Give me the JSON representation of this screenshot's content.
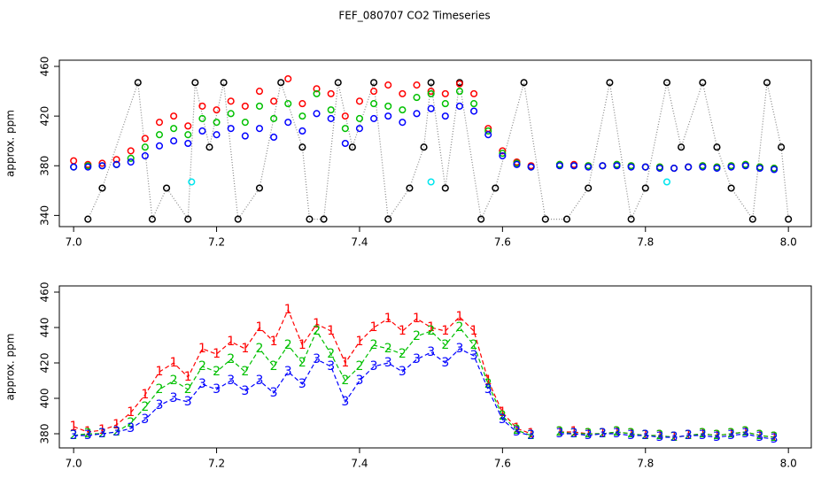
{
  "title": "FEF_080707  CO2 Timeseries",
  "chart_data": [
    {
      "type": "scatter",
      "ylabel": "approx. ppm",
      "xlim": [
        6.98,
        8.032
      ],
      "xticks": [
        {
          "value": 7,
          "label": "7.0"
        },
        7.2,
        7.4,
        7.6,
        7.8,
        {
          "value": 8,
          "label": "8.0"
        }
      ],
      "ylim": [
        331,
        465
      ],
      "yticks": [
        340,
        380,
        420,
        460
      ],
      "x": [
        7.0,
        7.02,
        7.04,
        7.06,
        7.08,
        7.1,
        7.12,
        7.14,
        7.16,
        7.18,
        7.2,
        7.22,
        7.24,
        7.26,
        7.28,
        7.3,
        7.32,
        7.34,
        7.36,
        7.38,
        7.4,
        7.42,
        7.44,
        7.46,
        7.48,
        7.5,
        7.52,
        7.54,
        7.56,
        7.58,
        7.6,
        7.62,
        7.64,
        7.66,
        7.68,
        7.7,
        7.72,
        7.74,
        7.76,
        7.78,
        7.8,
        7.82,
        7.84,
        7.86,
        7.88,
        7.9,
        7.92,
        7.94,
        7.96,
        7.98
      ],
      "series": [
        {
          "color": "#000000",
          "line_color": "#888888",
          "line_style": "dotted",
          "x": [
            7.02,
            7.04,
            7.09,
            7.11,
            7.13,
            7.16,
            7.17,
            7.19,
            7.21,
            7.23,
            7.26,
            7.29,
            7.32,
            7.33,
            7.35,
            7.37,
            7.39,
            7.42,
            7.44,
            7.47,
            7.49,
            7.5,
            7.52,
            7.54,
            7.57,
            7.59,
            7.63,
            7.66,
            7.69,
            7.72,
            7.75,
            7.78,
            7.8,
            7.83,
            7.85,
            7.88,
            7.9,
            7.92,
            7.95,
            7.97,
            7.99,
            8.0
          ],
          "values": [
            337,
            362,
            447,
            337,
            362,
            337,
            447,
            395,
            447,
            337,
            362,
            447,
            395,
            337,
            337,
            447,
            395,
            447,
            337,
            362,
            395,
            447,
            362,
            447,
            337,
            362,
            447,
            337,
            337,
            362,
            447,
            337,
            362,
            447,
            395,
            447,
            395,
            362,
            337,
            447,
            395,
            337
          ]
        },
        {
          "color": "#ff0000",
          "values": [
            384,
            381,
            382,
            385,
            392,
            402,
            415,
            420,
            412,
            428,
            425,
            432,
            428,
            440,
            432,
            450,
            430,
            442,
            438,
            420,
            432,
            440,
            445,
            438,
            445,
            440,
            438,
            446,
            438,
            410,
            392,
            383,
            380,
            null,
            381,
            381,
            380,
            380,
            381,
            380,
            379,
            379,
            378,
            379,
            380,
            379,
            380,
            381,
            379,
            378
          ]
        },
        {
          "color": "#00c000",
          "values": [
            379,
            380,
            380,
            381,
            386,
            395,
            405,
            410,
            405,
            418,
            415,
            422,
            415,
            428,
            418,
            430,
            420,
            438,
            425,
            410,
            418,
            430,
            428,
            425,
            435,
            438,
            430,
            440,
            430,
            408,
            390,
            382,
            379,
            null,
            381,
            380,
            380,
            380,
            381,
            380,
            379,
            379,
            378,
            379,
            380,
            379,
            380,
            381,
            379,
            378
          ]
        },
        {
          "color": "#0000ff",
          "values": [
            379,
            379,
            380,
            381,
            383,
            388,
            396,
            400,
            398,
            408,
            405,
            410,
            404,
            410,
            403,
            415,
            408,
            422,
            418,
            398,
            410,
            418,
            420,
            415,
            422,
            426,
            420,
            428,
            424,
            405,
            388,
            381,
            379,
            null,
            380,
            380,
            379,
            380,
            380,
            379,
            379,
            378,
            378,
            379,
            379,
            378,
            379,
            380,
            378,
            377
          ]
        },
        {
          "color": "#00e5ee",
          "x": [
            7.165,
            7.5,
            7.83
          ],
          "values": [
            367,
            367,
            367
          ]
        }
      ]
    },
    {
      "type": "line",
      "ylabel": "approx. ppm",
      "xlim": [
        6.98,
        8.032
      ],
      "xticks": [
        {
          "value": 7,
          "label": "7.0"
        },
        7.2,
        7.4,
        7.6,
        7.8,
        {
          "value": 8,
          "label": "8.0"
        }
      ],
      "ylim": [
        372,
        463.5
      ],
      "yticks": [
        380,
        400,
        420,
        440,
        460
      ],
      "x": [
        7.0,
        7.02,
        7.04,
        7.06,
        7.08,
        7.1,
        7.12,
        7.14,
        7.16,
        7.18,
        7.2,
        7.22,
        7.24,
        7.26,
        7.28,
        7.3,
        7.32,
        7.34,
        7.36,
        7.38,
        7.4,
        7.42,
        7.44,
        7.46,
        7.48,
        7.5,
        7.52,
        7.54,
        7.56,
        7.58,
        7.6,
        7.62,
        7.64,
        7.66,
        7.68,
        7.7,
        7.72,
        7.74,
        7.76,
        7.78,
        7.8,
        7.82,
        7.84,
        7.86,
        7.88,
        7.9,
        7.92,
        7.94,
        7.96,
        7.98
      ],
      "series": [
        {
          "marker": "1",
          "color": "#ff0000",
          "values": [
            384,
            381,
            382,
            385,
            392,
            402,
            415,
            420,
            412,
            428,
            425,
            432,
            428,
            440,
            432,
            450,
            430,
            442,
            438,
            420,
            432,
            440,
            445,
            438,
            445,
            440,
            438,
            446,
            438,
            410,
            392,
            383,
            380,
            null,
            381,
            381,
            380,
            380,
            381,
            380,
            379,
            379,
            378,
            379,
            380,
            379,
            380,
            381,
            379,
            378
          ]
        },
        {
          "marker": "2",
          "color": "#00c000",
          "values": [
            379,
            380,
            380,
            381,
            386,
            395,
            405,
            410,
            405,
            418,
            415,
            422,
            415,
            428,
            418,
            430,
            420,
            438,
            425,
            410,
            418,
            430,
            428,
            425,
            435,
            438,
            430,
            440,
            430,
            408,
            390,
            382,
            379,
            null,
            381,
            380,
            380,
            380,
            381,
            380,
            379,
            379,
            378,
            379,
            380,
            379,
            380,
            381,
            379,
            378
          ]
        },
        {
          "marker": "3",
          "color": "#0000ff",
          "values": [
            379,
            379,
            380,
            381,
            383,
            388,
            396,
            400,
            398,
            408,
            405,
            410,
            404,
            410,
            403,
            415,
            408,
            422,
            418,
            398,
            410,
            418,
            420,
            415,
            422,
            426,
            420,
            428,
            424,
            405,
            388,
            381,
            379,
            null,
            380,
            380,
            379,
            380,
            380,
            379,
            379,
            378,
            378,
            379,
            379,
            378,
            379,
            380,
            378,
            377
          ]
        }
      ]
    }
  ]
}
